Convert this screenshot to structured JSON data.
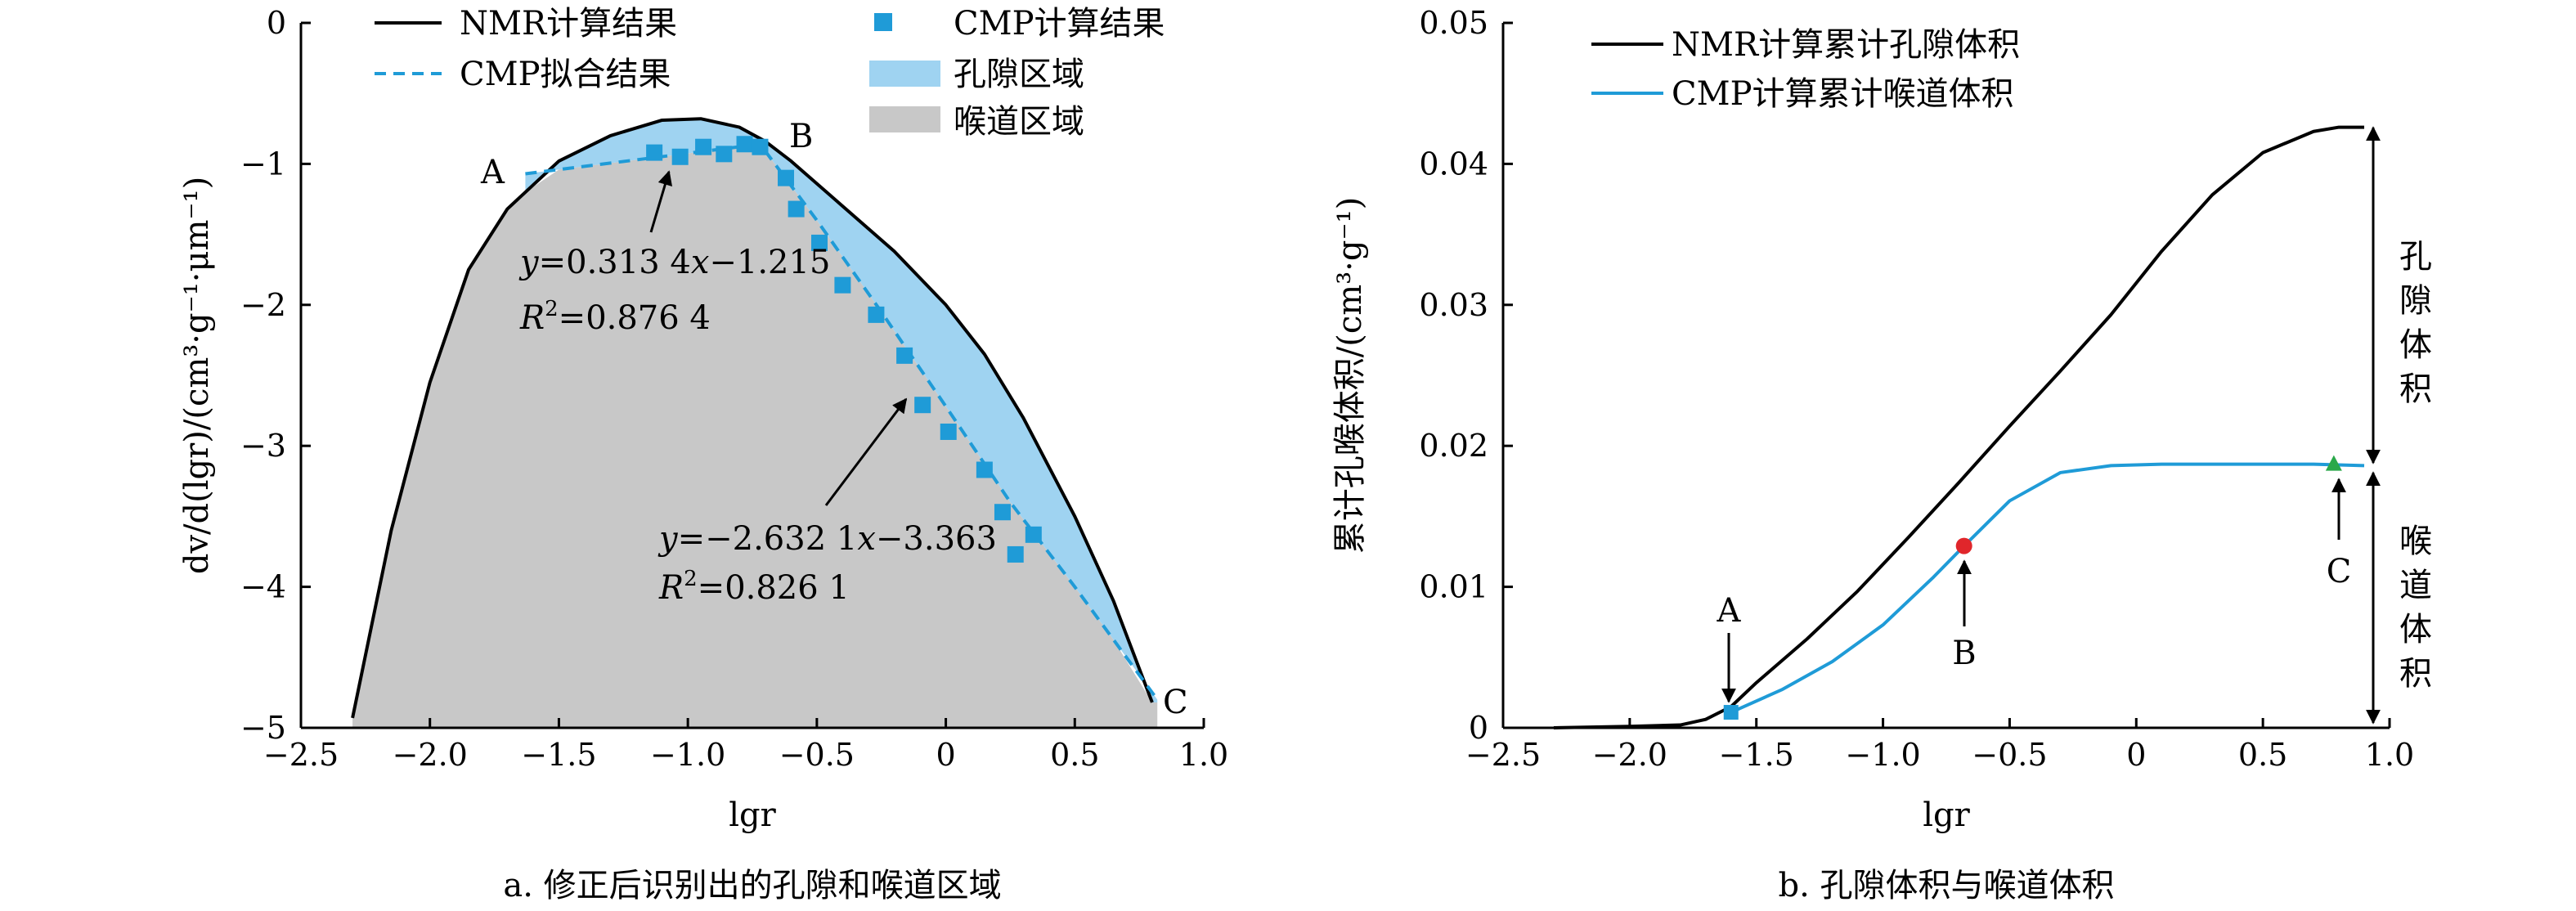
{
  "chart_data": [
    {
      "type": "line",
      "panel_caption": "a. 修正后识别出的孔隙和喉道区域",
      "xlabel": "lgr",
      "ylabel": "dv/d(lgr)/(cm³·g⁻¹·μm⁻¹)",
      "xlim": [
        -2.5,
        1.0
      ],
      "ylim": [
        -5,
        0
      ],
      "xticks": [
        -2.5,
        -2.0,
        -1.5,
        -1.0,
        -0.5,
        0,
        0.5,
        1.0
      ],
      "xtick_labels": [
        "−2.5",
        "−2.0",
        "−1.5",
        "−1.0",
        "−0.5",
        "0",
        "0.5",
        "1.0"
      ],
      "yticks": [
        0,
        -1,
        -2,
        -3,
        -4,
        -5
      ],
      "ytick_labels": [
        "0",
        "−1",
        "−2",
        "−3",
        "−4",
        "−5"
      ],
      "legend": [
        {
          "label": "NMR计算结果",
          "kind": "line",
          "color": "#000000"
        },
        {
          "label": "CMP拟合结果",
          "kind": "dashed",
          "color": "#1f9bd7"
        },
        {
          "label": "CMP计算结果",
          "kind": "marker",
          "color": "#1f9bd7"
        },
        {
          "label": "孔隙区域",
          "kind": "area",
          "color": "#9fd3f1"
        },
        {
          "label": "喉道区域",
          "kind": "area",
          "color": "#c8c8c8"
        }
      ],
      "series": [
        {
          "name": "NMR计算结果",
          "kind": "line",
          "color": "#000000",
          "x": [
            -2.3,
            -2.15,
            -2.0,
            -1.85,
            -1.7,
            -1.5,
            -1.3,
            -1.1,
            -0.95,
            -0.8,
            -0.7,
            -0.6,
            -0.4,
            -0.2,
            0.0,
            0.15,
            0.3,
            0.5,
            0.65,
            0.8
          ],
          "y": [
            -4.93,
            -3.6,
            -2.55,
            -1.75,
            -1.32,
            -0.98,
            -0.8,
            -0.69,
            -0.68,
            -0.74,
            -0.84,
            -0.98,
            -1.3,
            -1.62,
            -2.0,
            -2.35,
            -2.8,
            -3.5,
            -4.1,
            -4.82
          ]
        },
        {
          "name": "CMP拟合结果",
          "kind": "dashed",
          "color": "#1f9bd7",
          "x": [
            -1.63,
            -1.15,
            -0.72,
            -0.72,
            -0.5,
            -0.25,
            0.0,
            0.25,
            0.5,
            0.82
          ],
          "y": [
            -1.07,
            -0.96,
            -0.86,
            -0.86,
            -1.4,
            -2.05,
            -2.72,
            -3.4,
            -4.0,
            -4.8
          ]
        },
        {
          "name": "CMP计算结果",
          "kind": "marker",
          "color": "#1f9bd7",
          "x": [
            -1.13,
            -1.03,
            -0.94,
            -0.86,
            -0.78,
            -0.72,
            -0.62,
            -0.58,
            -0.49,
            -0.4,
            -0.27,
            -0.16,
            -0.09,
            0.01,
            0.15,
            0.22,
            0.27,
            0.34
          ],
          "y": [
            -0.92,
            -0.95,
            -0.88,
            -0.93,
            -0.86,
            -0.88,
            -1.1,
            -1.32,
            -1.56,
            -1.86,
            -2.07,
            -2.36,
            -2.71,
            -2.9,
            -3.17,
            -3.47,
            -3.77,
            -3.63
          ]
        }
      ],
      "point_labels": [
        {
          "label": "A",
          "x": -1.63,
          "y": -1.07
        },
        {
          "label": "B",
          "x": -0.72,
          "y": -0.86
        },
        {
          "label": "C",
          "x": 0.82,
          "y": -4.8
        }
      ],
      "annotations": [
        {
          "eq_prefix": "y",
          "eq_mid": "=0.313 4",
          "eq_var": "x",
          "eq_suffix": "−1.215",
          "r2_prefix": "R",
          "r2_sup": "2",
          "r2_value": "=0.876 4"
        },
        {
          "eq_prefix": "y",
          "eq_mid": "=−2.632 1",
          "eq_var": "x",
          "eq_suffix": "−3.363",
          "r2_prefix": "R",
          "r2_sup": "2",
          "r2_value": "=0.826 1"
        }
      ]
    },
    {
      "type": "line",
      "panel_caption": "b. 孔隙体积与喉道体积",
      "xlabel": "lgr",
      "ylabel": "累计孔喉体积/(cm³·g⁻¹)",
      "xlim": [
        -2.5,
        1.0
      ],
      "ylim": [
        0,
        0.05
      ],
      "xticks": [
        -2.5,
        -2.0,
        -1.5,
        -1.0,
        -0.5,
        0,
        0.5,
        1.0
      ],
      "xtick_labels": [
        "−2.5",
        "−2.0",
        "−1.5",
        "−1.0",
        "−0.5",
        "0",
        "0.5",
        "1.0"
      ],
      "yticks": [
        0,
        0.01,
        0.02,
        0.03,
        0.04,
        0.05
      ],
      "ytick_labels": [
        "0",
        "0.01",
        "0.02",
        "0.03",
        "0.04",
        "0.05"
      ],
      "legend": [
        {
          "label": "NMR计算累计孔隙体积",
          "kind": "line",
          "color": "#000000"
        },
        {
          "label": "CMP计算累计喉道体积",
          "kind": "line",
          "color": "#1f9bd7"
        }
      ],
      "series": [
        {
          "name": "NMR计算累计孔隙体积",
          "kind": "line",
          "color": "#000000",
          "x": [
            -2.3,
            -2.0,
            -1.8,
            -1.7,
            -1.6,
            -1.5,
            -1.3,
            -1.1,
            -0.9,
            -0.7,
            -0.5,
            -0.3,
            -0.1,
            0.1,
            0.3,
            0.5,
            0.7,
            0.8,
            0.9
          ],
          "y": [
            0.0,
            0.0001,
            0.0002,
            0.0006,
            0.0015,
            0.0032,
            0.0063,
            0.0097,
            0.0135,
            0.0174,
            0.0214,
            0.0253,
            0.0293,
            0.0338,
            0.0378,
            0.0408,
            0.0423,
            0.0426,
            0.0426
          ]
        },
        {
          "name": "CMP计算累计喉道体积",
          "kind": "line",
          "color": "#1f9bd7",
          "x": [
            -1.6,
            -1.4,
            -1.2,
            -1.0,
            -0.8,
            -0.68,
            -0.5,
            -0.3,
            -0.1,
            0.1,
            0.3,
            0.5,
            0.7,
            0.9
          ],
          "y": [
            0.0011,
            0.0027,
            0.0047,
            0.0073,
            0.0107,
            0.0129,
            0.0161,
            0.0181,
            0.0186,
            0.0187,
            0.0187,
            0.0187,
            0.0187,
            0.0186
          ]
        }
      ],
      "markers": [
        {
          "label": "A",
          "x": -1.6,
          "y": 0.0011,
          "shape": "square",
          "color": "#1f9bd7"
        },
        {
          "label": "B",
          "x": -0.68,
          "y": 0.0129,
          "shape": "circle",
          "color": "#e0262b"
        },
        {
          "label": "C",
          "x": 0.78,
          "y": 0.0187,
          "shape": "triangle",
          "color": "#2aa84a"
        }
      ],
      "bracket_labels": [
        {
          "text": "孔隙体积",
          "from_y": 0.0426,
          "to_y": 0.0187
        },
        {
          "text": "喉道体积",
          "from_y": 0.0187,
          "to_y": 0.0
        }
      ]
    }
  ]
}
